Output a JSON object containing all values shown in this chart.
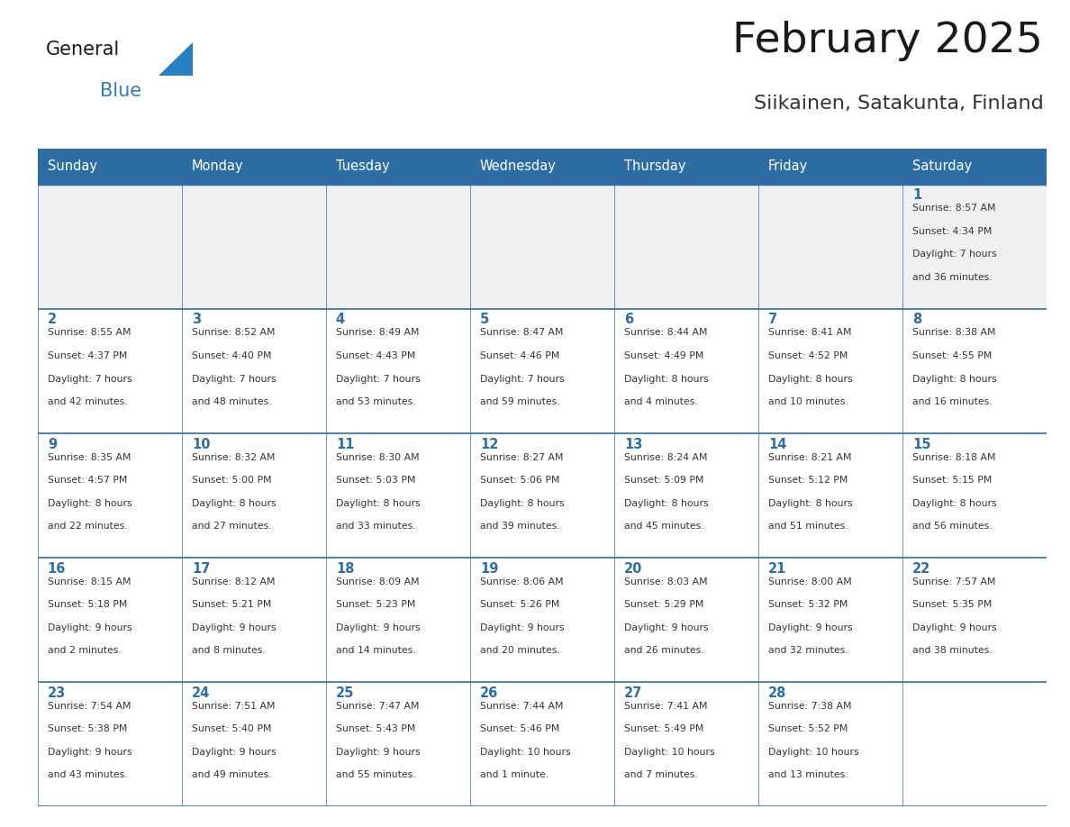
{
  "title": "February 2025",
  "subtitle": "Siikainen, Satakunta, Finland",
  "header_bg": "#2E6DA4",
  "header_text_color": "#FFFFFF",
  "cell_bg": "#FFFFFF",
  "first_row_bg": "#F0F0F0",
  "grid_line_color": "#2E6DA4",
  "day_names": [
    "Sunday",
    "Monday",
    "Tuesday",
    "Wednesday",
    "Thursday",
    "Friday",
    "Saturday"
  ],
  "title_color": "#1a1a1a",
  "subtitle_color": "#333333",
  "day_number_color": "#2E6DA4",
  "info_text_color": "#333333",
  "logo_general_color": "#1a1a1a",
  "logo_blue_color": "#2980C0",
  "weeks": [
    [
      null,
      null,
      null,
      null,
      null,
      null,
      {
        "day": 1,
        "sunrise": "8:57 AM",
        "sunset": "4:34 PM",
        "daylight": "7 hours and 36 minutes."
      }
    ],
    [
      {
        "day": 2,
        "sunrise": "8:55 AM",
        "sunset": "4:37 PM",
        "daylight": "7 hours and 42 minutes."
      },
      {
        "day": 3,
        "sunrise": "8:52 AM",
        "sunset": "4:40 PM",
        "daylight": "7 hours and 48 minutes."
      },
      {
        "day": 4,
        "sunrise": "8:49 AM",
        "sunset": "4:43 PM",
        "daylight": "7 hours and 53 minutes."
      },
      {
        "day": 5,
        "sunrise": "8:47 AM",
        "sunset": "4:46 PM",
        "daylight": "7 hours and 59 minutes."
      },
      {
        "day": 6,
        "sunrise": "8:44 AM",
        "sunset": "4:49 PM",
        "daylight": "8 hours and 4 minutes."
      },
      {
        "day": 7,
        "sunrise": "8:41 AM",
        "sunset": "4:52 PM",
        "daylight": "8 hours and 10 minutes."
      },
      {
        "day": 8,
        "sunrise": "8:38 AM",
        "sunset": "4:55 PM",
        "daylight": "8 hours and 16 minutes."
      }
    ],
    [
      {
        "day": 9,
        "sunrise": "8:35 AM",
        "sunset": "4:57 PM",
        "daylight": "8 hours and 22 minutes."
      },
      {
        "day": 10,
        "sunrise": "8:32 AM",
        "sunset": "5:00 PM",
        "daylight": "8 hours and 27 minutes."
      },
      {
        "day": 11,
        "sunrise": "8:30 AM",
        "sunset": "5:03 PM",
        "daylight": "8 hours and 33 minutes."
      },
      {
        "day": 12,
        "sunrise": "8:27 AM",
        "sunset": "5:06 PM",
        "daylight": "8 hours and 39 minutes."
      },
      {
        "day": 13,
        "sunrise": "8:24 AM",
        "sunset": "5:09 PM",
        "daylight": "8 hours and 45 minutes."
      },
      {
        "day": 14,
        "sunrise": "8:21 AM",
        "sunset": "5:12 PM",
        "daylight": "8 hours and 51 minutes."
      },
      {
        "day": 15,
        "sunrise": "8:18 AM",
        "sunset": "5:15 PM",
        "daylight": "8 hours and 56 minutes."
      }
    ],
    [
      {
        "day": 16,
        "sunrise": "8:15 AM",
        "sunset": "5:18 PM",
        "daylight": "9 hours and 2 minutes."
      },
      {
        "day": 17,
        "sunrise": "8:12 AM",
        "sunset": "5:21 PM",
        "daylight": "9 hours and 8 minutes."
      },
      {
        "day": 18,
        "sunrise": "8:09 AM",
        "sunset": "5:23 PM",
        "daylight": "9 hours and 14 minutes."
      },
      {
        "day": 19,
        "sunrise": "8:06 AM",
        "sunset": "5:26 PM",
        "daylight": "9 hours and 20 minutes."
      },
      {
        "day": 20,
        "sunrise": "8:03 AM",
        "sunset": "5:29 PM",
        "daylight": "9 hours and 26 minutes."
      },
      {
        "day": 21,
        "sunrise": "8:00 AM",
        "sunset": "5:32 PM",
        "daylight": "9 hours and 32 minutes."
      },
      {
        "day": 22,
        "sunrise": "7:57 AM",
        "sunset": "5:35 PM",
        "daylight": "9 hours and 38 minutes."
      }
    ],
    [
      {
        "day": 23,
        "sunrise": "7:54 AM",
        "sunset": "5:38 PM",
        "daylight": "9 hours and 43 minutes."
      },
      {
        "day": 24,
        "sunrise": "7:51 AM",
        "sunset": "5:40 PM",
        "daylight": "9 hours and 49 minutes."
      },
      {
        "day": 25,
        "sunrise": "7:47 AM",
        "sunset": "5:43 PM",
        "daylight": "9 hours and 55 minutes."
      },
      {
        "day": 26,
        "sunrise": "7:44 AM",
        "sunset": "5:46 PM",
        "daylight": "10 hours and 1 minute."
      },
      {
        "day": 27,
        "sunrise": "7:41 AM",
        "sunset": "5:49 PM",
        "daylight": "10 hours and 7 minutes."
      },
      {
        "day": 28,
        "sunrise": "7:38 AM",
        "sunset": "5:52 PM",
        "daylight": "10 hours and 13 minutes."
      },
      null
    ]
  ]
}
